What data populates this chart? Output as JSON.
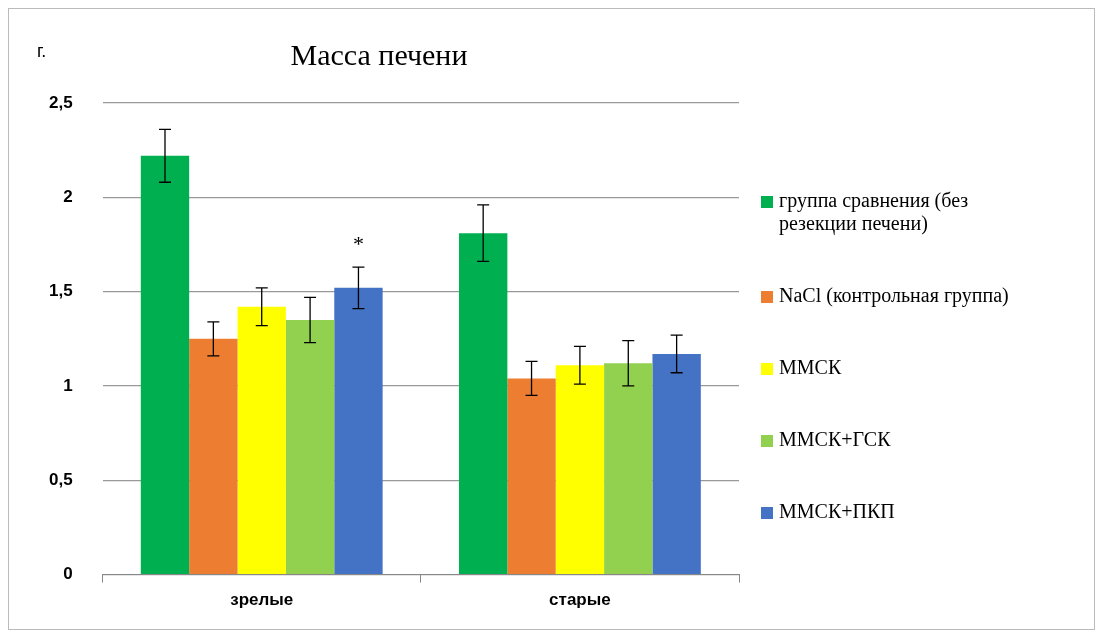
{
  "chart_data": {
    "type": "bar",
    "title": "Масса печени",
    "ylabel": "г.",
    "categories": [
      "зрелые",
      "старые"
    ],
    "series": [
      {
        "name": "группа сравнения (без резекции печени)",
        "color": "#00b050",
        "values": [
          2.22,
          1.81
        ],
        "errors": [
          0.14,
          0.15
        ]
      },
      {
        "name": "NaCl (контрольная группа)",
        "color": "#ed7d31",
        "values": [
          1.25,
          1.04
        ],
        "errors": [
          0.09,
          0.09
        ]
      },
      {
        "name": "ММСК",
        "color": "#ffff00",
        "values": [
          1.42,
          1.11
        ],
        "errors": [
          0.1,
          0.1
        ]
      },
      {
        "name": "ММСК+ГСК",
        "color": "#92d050",
        "values": [
          1.35,
          1.12
        ],
        "errors": [
          0.12,
          0.12
        ]
      },
      {
        "name": "ММСК+ПКП",
        "color": "#4472c4",
        "values": [
          1.52,
          1.17
        ],
        "errors": [
          0.11,
          0.1
        ]
      }
    ],
    "ylim": [
      0,
      2.5
    ],
    "yticks": [
      {
        "value": 0,
        "label": "0"
      },
      {
        "value": 0.5,
        "label": "0,5"
      },
      {
        "value": 1,
        "label": "1"
      },
      {
        "value": 1.5,
        "label": "1,5"
      },
      {
        "value": 2,
        "label": "2"
      },
      {
        "value": 2.5,
        "label": "2,5"
      }
    ],
    "grid": "y",
    "legend": "right",
    "annotations": [
      "*"
    ]
  }
}
